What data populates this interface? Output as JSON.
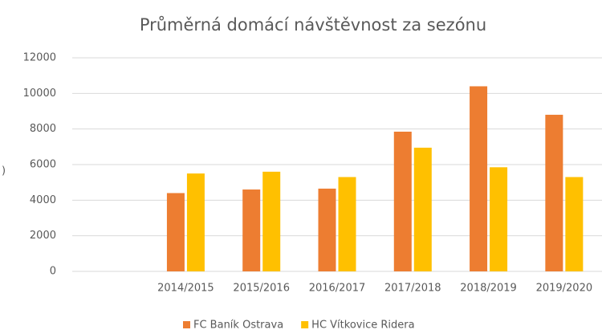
{
  "chart_data": {
    "type": "bar",
    "title": "Průměrná domácí návštěvnost za sezónu",
    "ylabel": ")",
    "categories": [
      null,
      "2014/2015",
      "2015/2016",
      "2016/2017",
      "2017/2018",
      "2018/2019",
      "2019/2020"
    ],
    "series": [
      {
        "name": "FC Baník Ostrava",
        "color": "#ED7D31",
        "values": [
          null,
          4400,
          4600,
          4650,
          7850,
          10400,
          8800
        ]
      },
      {
        "name": "HC Vítkovice Ridera",
        "color": "#FFC000",
        "values": [
          null,
          5500,
          5600,
          5300,
          6950,
          5850,
          5300
        ]
      }
    ],
    "ylim": [
      0,
      12000
    ],
    "yticks": [
      0,
      2000,
      4000,
      6000,
      8000,
      10000,
      12000
    ],
    "grid": true,
    "legend": "bottom"
  }
}
